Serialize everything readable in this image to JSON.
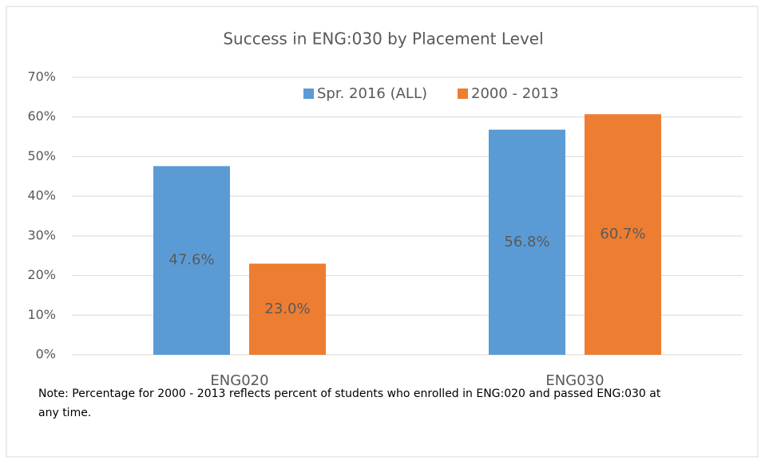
{
  "chart_data": {
    "type": "bar",
    "title": "Success in ENG:030 by Placement Level",
    "categories": [
      "ENG020",
      "ENG030"
    ],
    "series": [
      {
        "name": "Spr. 2016 (ALL)",
        "color": "#5b9bd5",
        "values": [
          47.6,
          56.8
        ],
        "value_labels": [
          "47.6%",
          "56.8%"
        ]
      },
      {
        "name": "2000 - 2013",
        "color": "#ed7d31",
        "values": [
          23.0,
          60.7
        ],
        "value_labels": [
          "23.0%",
          "60.7%"
        ]
      }
    ],
    "ylim": [
      0,
      70
    ],
    "yticks": [
      {
        "value": 0,
        "label": "0%"
      },
      {
        "value": 10,
        "label": "10%"
      },
      {
        "value": 20,
        "label": "20%"
      },
      {
        "value": 30,
        "label": "30%"
      },
      {
        "value": 40,
        "label": "40%"
      },
      {
        "value": 50,
        "label": "50%"
      },
      {
        "value": 60,
        "label": "60%"
      },
      {
        "value": 70,
        "label": "70%"
      }
    ],
    "grid": true,
    "legend": "top",
    "note": "Note: Percentage for 2000 - 2013 reflects percent of students who enrolled in ENG:020 and passed ENG:030 at any time."
  }
}
